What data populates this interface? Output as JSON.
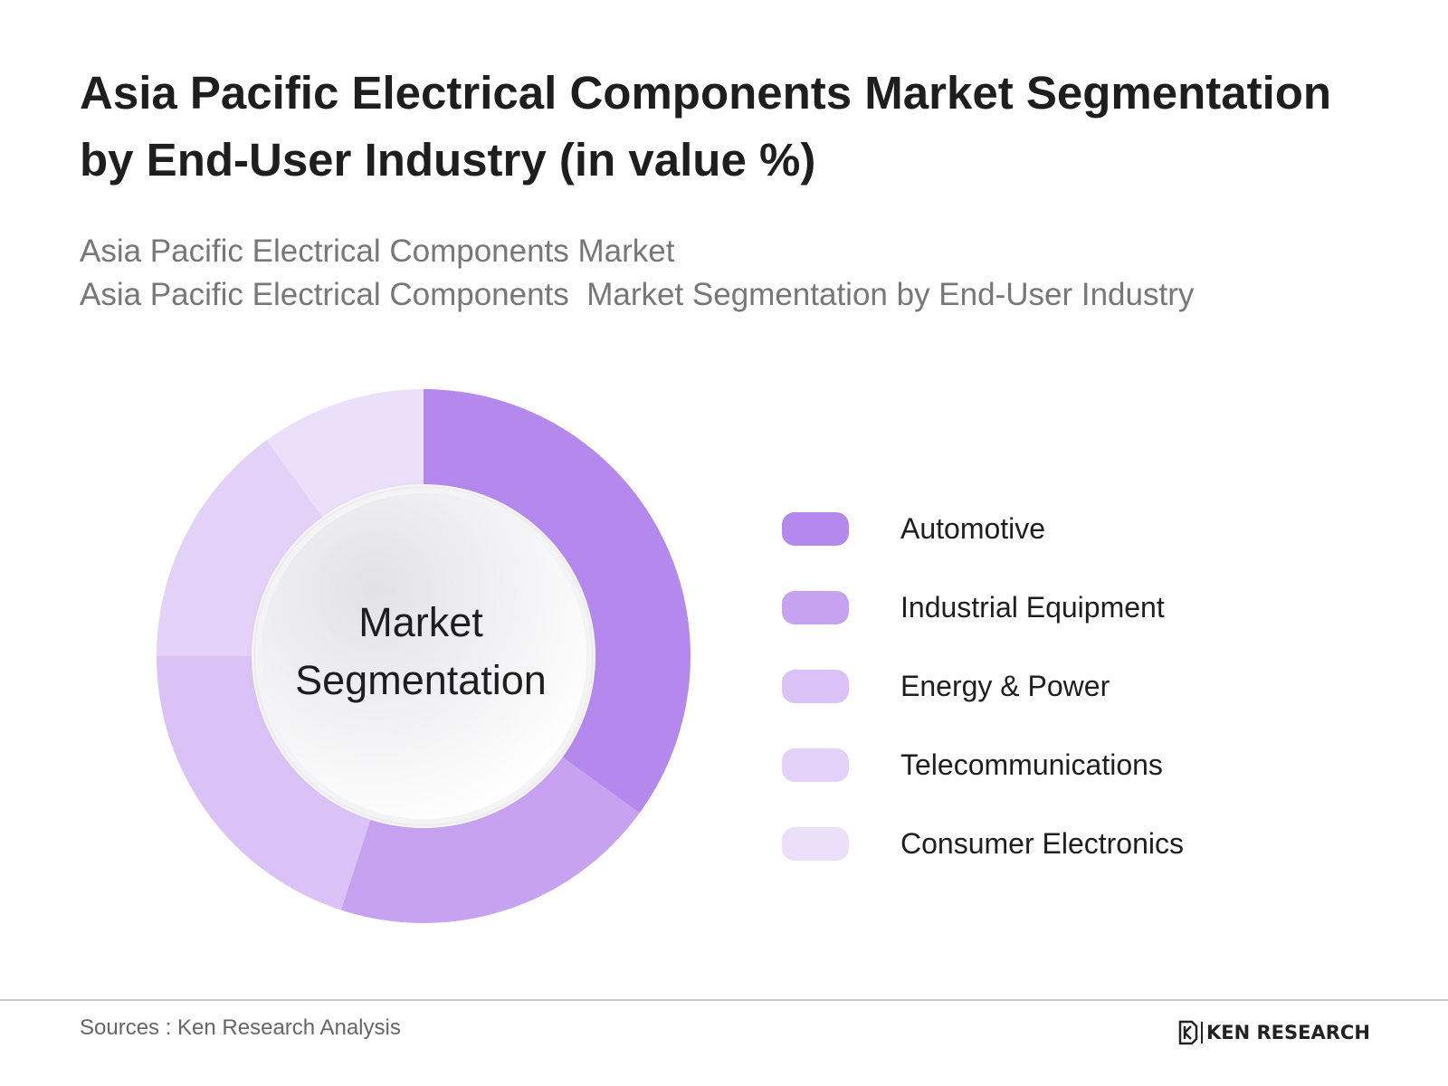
{
  "header": {
    "title_line1": "Asia Pacific Electrical Components Market Segmentation",
    "title_line2": "by End-User Industry (in value %)",
    "subtitle_line1": "Asia Pacific Electrical Components Market",
    "subtitle_line2": "Asia Pacific Electrical Components  Market Segmentation by End-User Industry"
  },
  "chart_data": {
    "type": "pie",
    "variant": "donut",
    "center_label_line1": "Market",
    "center_label_line2": "Segmentation",
    "categories": [
      "Automotive",
      "Industrial Equipment",
      "Energy & Power",
      "Telecommunications",
      "Consumer Electronics"
    ],
    "values": [
      35,
      20,
      20,
      15,
      10
    ],
    "colors": [
      "#b488ec",
      "#c7a2f0",
      "#dac2f6",
      "#e4d1f8",
      "#ecdffa"
    ],
    "legend_position": "right"
  },
  "footer": {
    "source": "Sources : Ken Research Analysis",
    "logo_text": "KEN RESEARCH"
  }
}
